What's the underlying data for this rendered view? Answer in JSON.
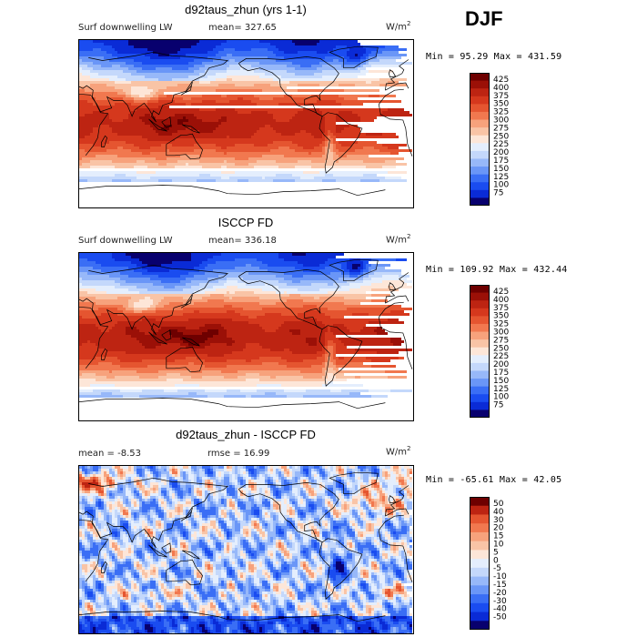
{
  "season": "DJF",
  "colors": {
    "seq": [
      "#08006e",
      "#0a2bd6",
      "#1a4cf0",
      "#3a6ef5",
      "#6a96f7",
      "#97b8f9",
      "#c4d8fb",
      "#e4eefd",
      "#fde6d8",
      "#f9c4a6",
      "#f7a27c",
      "#f1784f",
      "#e55530",
      "#d5381d",
      "#bd2412",
      "#9b1007",
      "#6e0000"
    ],
    "diff": [
      "#08006e",
      "#0a2bd6",
      "#1a4cf0",
      "#3a6ef5",
      "#6a96f7",
      "#97b8f9",
      "#c4d8fb",
      "#e4eefd",
      "#fde6d8",
      "#f9c4a6",
      "#f7a27c",
      "#f1784f",
      "#e55530",
      "#bd2412",
      "#6e0000"
    ]
  },
  "panels": [
    {
      "id": "model",
      "title": "d92taus_zhun (yrs 1-1)",
      "variable": "Surf downwelling LW",
      "stat": "mean= 327.65",
      "unit_base": "W/m",
      "unit_exp": "2",
      "minmax": "Min =  95.29 Max = 431.59",
      "colorbar_labels": [
        "425",
        "400",
        "375",
        "350",
        "325",
        "300",
        "275",
        "250",
        "225",
        "200",
        "175",
        "150",
        "125",
        "100",
        "75"
      ]
    },
    {
      "id": "obs",
      "title": "ISCCP FD",
      "variable": "Surf downwelling LW",
      "stat": "mean= 336.18",
      "unit_base": "W/m",
      "unit_exp": "2",
      "minmax": "Min = 109.92 Max = 432.44",
      "colorbar_labels": [
        "425",
        "400",
        "375",
        "350",
        "325",
        "300",
        "275",
        "250",
        "225",
        "200",
        "175",
        "150",
        "125",
        "100",
        "75"
      ]
    },
    {
      "id": "diff",
      "title": "d92taus_zhun - ISCCP FD",
      "stat_left": "mean =  -8.53",
      "stat_right": "rmse =  16.99",
      "unit_base": "W/m",
      "unit_exp": "2",
      "minmax": "Min = -65.61 Max =  42.05",
      "colorbar_labels": [
        "50",
        "40",
        "30",
        "20",
        "15",
        "10",
        "5",
        "0",
        "-5",
        "-10",
        "-15",
        "-20",
        "-30",
        "-40",
        "-50"
      ]
    }
  ],
  "chart_data": [
    {
      "type": "heatmap",
      "title": "d92taus_zhun (yrs 1-1)",
      "variable": "Surf downwelling LW",
      "units": "W/m2",
      "mean": 327.65,
      "min": 95.29,
      "max": 431.59,
      "contour_levels": [
        75,
        100,
        125,
        150,
        175,
        200,
        225,
        250,
        275,
        300,
        325,
        350,
        375,
        400,
        425
      ],
      "lat_band_values": [
        {
          "lat": 80,
          "value": 190
        },
        {
          "lat": 60,
          "value": 250
        },
        {
          "lat": 40,
          "value": 305
        },
        {
          "lat": 20,
          "value": 375
        },
        {
          "lat": 0,
          "value": 405
        },
        {
          "lat": -20,
          "value": 380
        },
        {
          "lat": -40,
          "value": 320
        },
        {
          "lat": -60,
          "value": 265
        },
        {
          "lat": -80,
          "value": 140
        }
      ]
    },
    {
      "type": "heatmap",
      "title": "ISCCP FD",
      "variable": "Surf downwelling LW",
      "units": "W/m2",
      "mean": 336.18,
      "min": 109.92,
      "max": 432.44,
      "contour_levels": [
        75,
        100,
        125,
        150,
        175,
        200,
        225,
        250,
        275,
        300,
        325,
        350,
        375,
        400,
        425
      ],
      "lat_band_values": [
        {
          "lat": 80,
          "value": 200
        },
        {
          "lat": 60,
          "value": 265
        },
        {
          "lat": 40,
          "value": 320
        },
        {
          "lat": 20,
          "value": 385
        },
        {
          "lat": 0,
          "value": 410
        },
        {
          "lat": -20,
          "value": 385
        },
        {
          "lat": -40,
          "value": 325
        },
        {
          "lat": -60,
          "value": 270
        },
        {
          "lat": -80,
          "value": 160
        }
      ]
    },
    {
      "type": "heatmap",
      "title": "d92taus_zhun - ISCCP FD",
      "variable": "Surf downwelling LW difference",
      "units": "W/m2",
      "mean": -8.53,
      "rmse": 16.99,
      "min": -65.61,
      "max": 42.05,
      "contour_levels": [
        -50,
        -40,
        -30,
        -20,
        -15,
        -10,
        -5,
        0,
        5,
        10,
        15,
        20,
        30,
        40,
        50
      ],
      "lat_band_values": [
        {
          "lat": 80,
          "value": 10
        },
        {
          "lat": 60,
          "value": -10
        },
        {
          "lat": 40,
          "value": -12
        },
        {
          "lat": 20,
          "value": -8
        },
        {
          "lat": 0,
          "value": -12
        },
        {
          "lat": -20,
          "value": -5
        },
        {
          "lat": -40,
          "value": -8
        },
        {
          "lat": -60,
          "value": -6
        },
        {
          "lat": -80,
          "value": -20
        }
      ]
    }
  ]
}
